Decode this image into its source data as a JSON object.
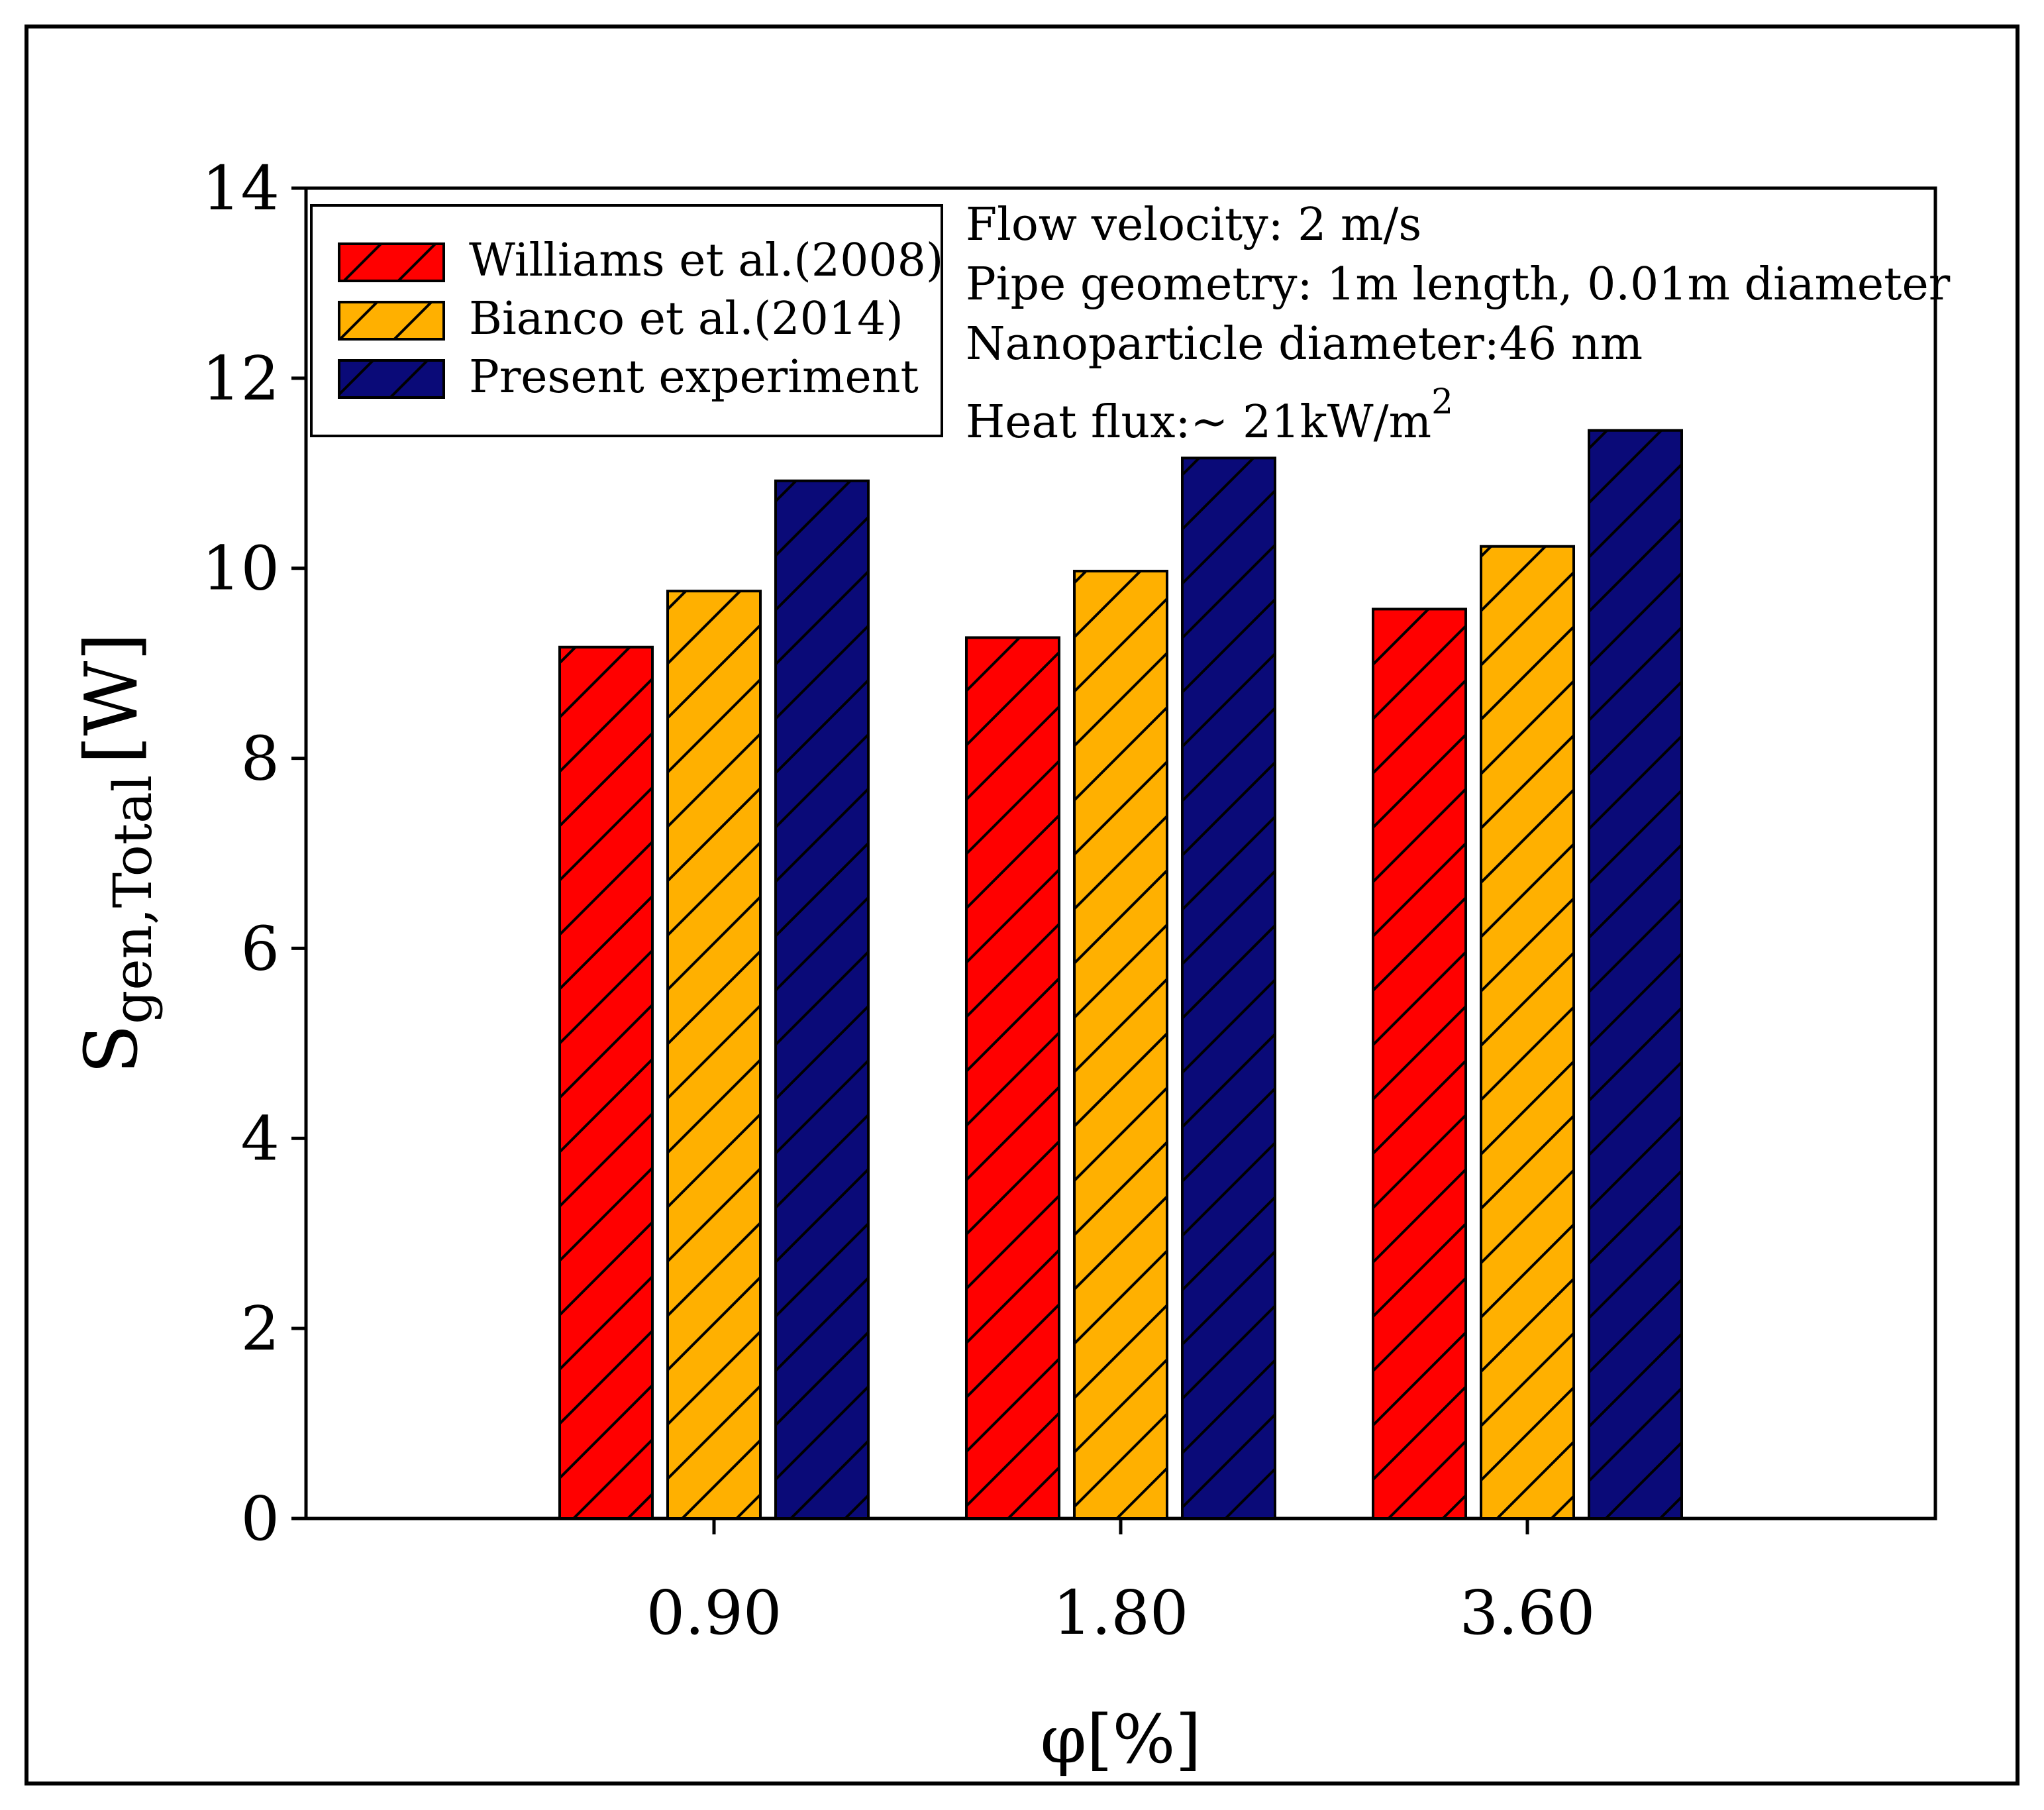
{
  "chart_data": {
    "type": "bar",
    "title": "",
    "xlabel": "φ[%]",
    "ylabel": {
      "main": "S",
      "sub": "gen,Total",
      "unit": "[W]"
    },
    "categories": [
      "0.90",
      "1.80",
      "3.60"
    ],
    "ylim": [
      0,
      14
    ],
    "yticks": [
      "0",
      "2",
      "4",
      "6",
      "8",
      "10",
      "12",
      "14"
    ],
    "series": [
      {
        "name": "Williams et al.(2008)",
        "color": "#ff0000",
        "values": [
          9.17,
          9.27,
          9.57
        ]
      },
      {
        "name": "Bianco et al.(2014)",
        "color": "#ffb000",
        "values": [
          9.76,
          9.97,
          10.23
        ]
      },
      {
        "name": "Present experiment",
        "color": "#0a0a78",
        "values": [
          10.92,
          11.16,
          11.45
        ]
      }
    ],
    "legend_position": "top-left",
    "annotations": [
      "Flow velocity: 2 m/s",
      "Pipe geometry: 1m length, 0.01m diameter",
      "Nanoparticle diameter:46 nm"
    ],
    "heat_flux": {
      "text": "Heat flux:~ 21kW/m",
      "sup": "2"
    }
  }
}
